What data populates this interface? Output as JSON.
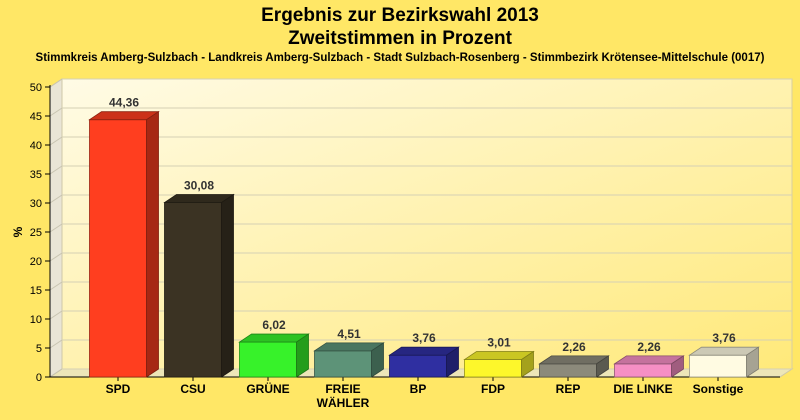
{
  "title_line1": "Ergebnis zur Bezirkswahl 2013",
  "title_line2": "Zweitstimmen in Prozent",
  "subtitle": "Stimmkreis Amberg-Sulzbach - Landkreis Amberg-Sulzbach - Stadt Sulzbach-Rosenberg - Stimmbezirk Krötensee-Mittelschule (0017)",
  "chart_data": {
    "type": "bar",
    "categories": [
      [
        "SPD"
      ],
      [
        "CSU"
      ],
      [
        "GRÜNE"
      ],
      [
        "FREIE",
        "WÄHLER"
      ],
      [
        "BP"
      ],
      [
        "FDP"
      ],
      [
        "REP"
      ],
      [
        "DIE LINKE"
      ],
      [
        "Sonstige"
      ]
    ],
    "values": [
      44.36,
      30.08,
      6.02,
      4.51,
      3.76,
      3.01,
      2.26,
      2.26,
      3.76
    ],
    "value_labels": [
      "44,36",
      "30,08",
      "6,02",
      "4,51",
      "3,76",
      "3,01",
      "2,26",
      "2,26",
      "3,76"
    ],
    "colors": [
      "#ff3e1f",
      "#3b3323",
      "#37f22a",
      "#5d9378",
      "#2f2fa1",
      "#fdf72b",
      "#8c8a7b",
      "#f68fc4",
      "#fffbe2"
    ],
    "ylabel": "%",
    "ylim": [
      0,
      50
    ],
    "yticks": [
      0,
      5,
      10,
      15,
      20,
      25,
      30,
      35,
      40,
      45,
      50
    ],
    "grid": true,
    "style": "3d-bar"
  }
}
